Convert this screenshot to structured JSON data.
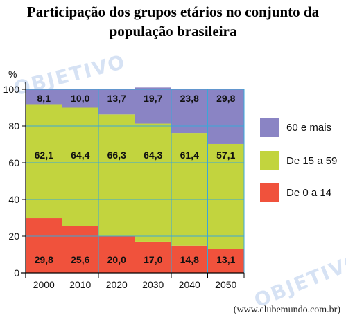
{
  "title_line1": "Participação dos grupos etários no conjunto da",
  "title_line2": "população brasileira",
  "source": "(www.clubemundo.com.br)",
  "watermark": "OBJETIVO",
  "colors": {
    "old": "#8a84c4",
    "adult": "#c2d43e",
    "young": "#f0523c",
    "grid": "#3aa7d8"
  },
  "chart_data": {
    "type": "bar",
    "stacked": true,
    "categories": [
      "2000",
      "2010",
      "2020",
      "2030",
      "2040",
      "2050"
    ],
    "series": [
      {
        "name": "De 0 a 14",
        "values": [
          29.8,
          25.6,
          20.0,
          17.0,
          14.8,
          13.1
        ],
        "labels": [
          "29,8",
          "25,6",
          "20,0",
          "17,0",
          "14,8",
          "13,1"
        ]
      },
      {
        "name": "De 15 a 59",
        "values": [
          62.1,
          64.4,
          66.3,
          64.3,
          61.4,
          57.1
        ],
        "labels": [
          "62,1",
          "64,4",
          "66,3",
          "64,3",
          "61,4",
          "57,1"
        ]
      },
      {
        "name": "60 e mais",
        "values": [
          8.1,
          10.0,
          13.7,
          19.7,
          23.8,
          29.8
        ],
        "labels": [
          "8,1",
          "10,0",
          "13,7",
          "19,7",
          "23,8",
          "29,8"
        ]
      }
    ],
    "ylabel": "%",
    "ylim": [
      0,
      100
    ],
    "yticks": [
      "0",
      "20",
      "40",
      "60",
      "80",
      "100"
    ],
    "grid": true,
    "legend_order": [
      "60 e mais",
      "De 15 a 59",
      "De 0 a 14"
    ],
    "legend_position": "right"
  }
}
